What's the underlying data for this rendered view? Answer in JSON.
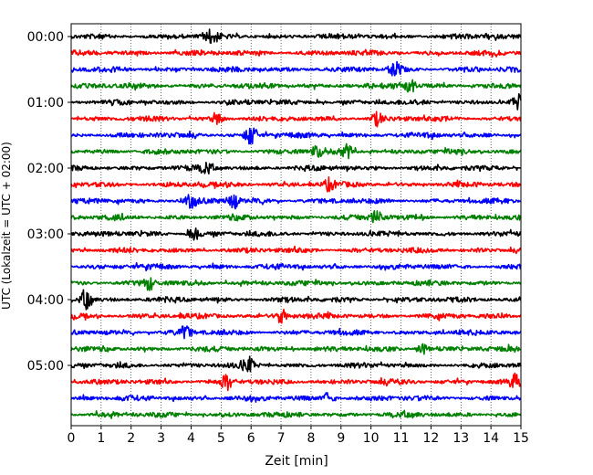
{
  "chart_data": {
    "type": "line",
    "chart_kind": "seismogram-helicorder",
    "xlabel": "Zeit  [min]",
    "ylabel": "UTC (Lokalzeit = UTC + 02:00)",
    "xlim": [
      0,
      15
    ],
    "x_ticks": [
      "0",
      "1",
      "2",
      "3",
      "4",
      "5",
      "6",
      "7",
      "8",
      "9",
      "10",
      "11",
      "12",
      "13",
      "14",
      "15"
    ],
    "y_ticks": [
      "00:00",
      "01:00",
      "02:00",
      "03:00",
      "04:00",
      "05:00"
    ],
    "grid_x": true,
    "grid_y": false,
    "trace_interval_minutes": 15,
    "trace_start_times": [
      "00:00",
      "00:15",
      "00:30",
      "00:45",
      "01:00",
      "01:15",
      "01:30",
      "01:45",
      "02:00",
      "02:15",
      "02:30",
      "02:45",
      "03:00",
      "03:15",
      "03:30",
      "03:45",
      "04:00",
      "04:15",
      "04:30",
      "04:45",
      "05:00",
      "05:15",
      "05:30",
      "05:45"
    ],
    "color_cycle": [
      "#000000",
      "#ff0000",
      "#0000ff",
      "#008000"
    ],
    "events": [
      {
        "trace": 0,
        "minute": 4.7,
        "amp": 1.6
      },
      {
        "trace": 2,
        "minute": 10.8,
        "amp": 1.8
      },
      {
        "trace": 3,
        "minute": 11.3,
        "amp": 1.6
      },
      {
        "trace": 4,
        "minute": 14.9,
        "amp": 1.7
      },
      {
        "trace": 5,
        "minute": 4.9,
        "amp": 1.3
      },
      {
        "trace": 5,
        "minute": 10.2,
        "amp": 1.5
      },
      {
        "trace": 6,
        "minute": 6.0,
        "amp": 2.6
      },
      {
        "trace": 7,
        "minute": 9.2,
        "amp": 1.5
      },
      {
        "trace": 7,
        "minute": 8.2,
        "amp": 1.3
      },
      {
        "trace": 8,
        "minute": 4.5,
        "amp": 1.3
      },
      {
        "trace": 9,
        "minute": 8.6,
        "amp": 1.4
      },
      {
        "trace": 10,
        "minute": 5.4,
        "amp": 1.8
      },
      {
        "trace": 10,
        "minute": 4.0,
        "amp": 1.5
      },
      {
        "trace": 11,
        "minute": 10.2,
        "amp": 1.8
      },
      {
        "trace": 12,
        "minute": 4.1,
        "amp": 1.4
      },
      {
        "trace": 15,
        "minute": 2.6,
        "amp": 1.4
      },
      {
        "trace": 16,
        "minute": 0.5,
        "amp": 2.4
      },
      {
        "trace": 17,
        "minute": 7.0,
        "amp": 1.8
      },
      {
        "trace": 18,
        "minute": 3.8,
        "amp": 1.5
      },
      {
        "trace": 19,
        "minute": 11.7,
        "amp": 1.3
      },
      {
        "trace": 20,
        "minute": 5.9,
        "amp": 1.9
      },
      {
        "trace": 21,
        "minute": 5.2,
        "amp": 1.7
      },
      {
        "trace": 21,
        "minute": 14.8,
        "amp": 1.5
      },
      {
        "trace": 22,
        "minute": 8.6,
        "amp": 1.7
      }
    ]
  }
}
